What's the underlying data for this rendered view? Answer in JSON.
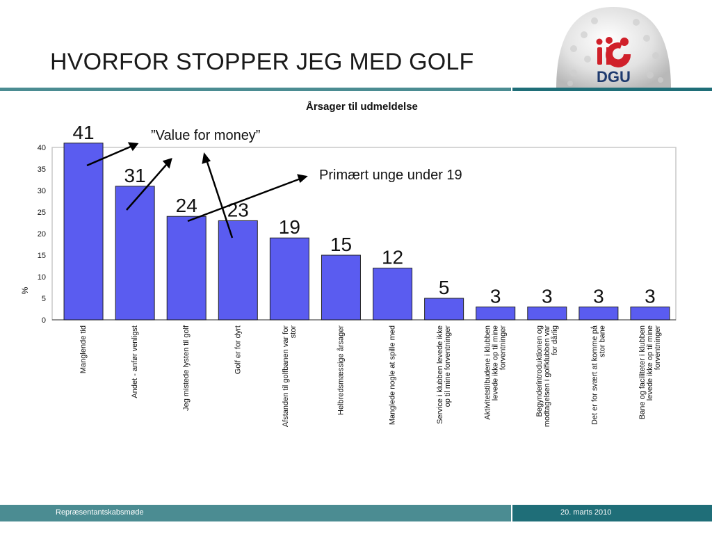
{
  "slide": {
    "title": "HVORFOR STOPPER JEG MED GOLF",
    "logo_text": "DGU",
    "footer_left": "Repræsentantskabsmøde",
    "footer_right": "20. marts 2010",
    "annotation_value_for_money": "”Value for money”",
    "annotation_young": "Primært unge under 19"
  },
  "colors": {
    "bar": "#5a5cf0",
    "accent_teal": "#4b8c92",
    "accent_dark_teal": "#1f6e78",
    "logo_red": "#d0202a",
    "logo_blue": "#1e3a6e"
  },
  "chart_data": {
    "type": "bar",
    "title": "Årsager til udmeldelse",
    "ylabel": "%",
    "xlabel": "",
    "ylim": [
      0,
      40
    ],
    "yticks": [
      0,
      5,
      10,
      15,
      20,
      25,
      30,
      35,
      40
    ],
    "grid": false,
    "categories": [
      "Manglende tid",
      "Andet - anfør venligst",
      "Jeg mistede lysten til golf",
      "Golf er for dyrt",
      "Afstanden til golfbanen var for stor",
      "Helbredsmæssige årsager",
      "Manglede nogle at spille med",
      "Service i klubben levede ikke op til mine forventninger",
      "Aktivitetstilbudene i klubben levede ikke op til mine forventninger",
      "Begynderintroduktionen og modtagelsen i golfklubben var for dårlig",
      "Det er for svært at komme på stor bane",
      "Bane og faciliteter i klubben levede ikke op til mine forventninger"
    ],
    "category_lines": [
      [
        "Manglende tid"
      ],
      [
        "Andet - anfør venligst"
      ],
      [
        "Jeg mistede lysten til golf"
      ],
      [
        "Golf er for dyrt"
      ],
      [
        "Afstanden til golfbanen var for",
        "stor"
      ],
      [
        "Helbredsmæssige årsager"
      ],
      [
        "Manglede nogle at spille med"
      ],
      [
        "Service i klubben levede ikke",
        "op til mine forventninger"
      ],
      [
        "Aktivitetstilbudene i klubben",
        "levede ikke op til mine",
        "forventninger"
      ],
      [
        "Begynderintroduktionen og",
        "modtagelsen i golfklubben var",
        "for dårlig"
      ],
      [
        "Det er for svært at komme på",
        "stor bane"
      ],
      [
        "Bane og faciliteter i klubben",
        "levede ikke op til mine",
        "forventninger"
      ]
    ],
    "values": [
      41,
      31,
      24,
      23,
      19,
      15,
      12,
      5,
      3,
      3,
      3,
      3
    ],
    "value_labels": [
      "41",
      "31",
      "24",
      "23",
      "19",
      "15",
      "12",
      "5",
      "3",
      "3",
      "3",
      "3"
    ]
  }
}
